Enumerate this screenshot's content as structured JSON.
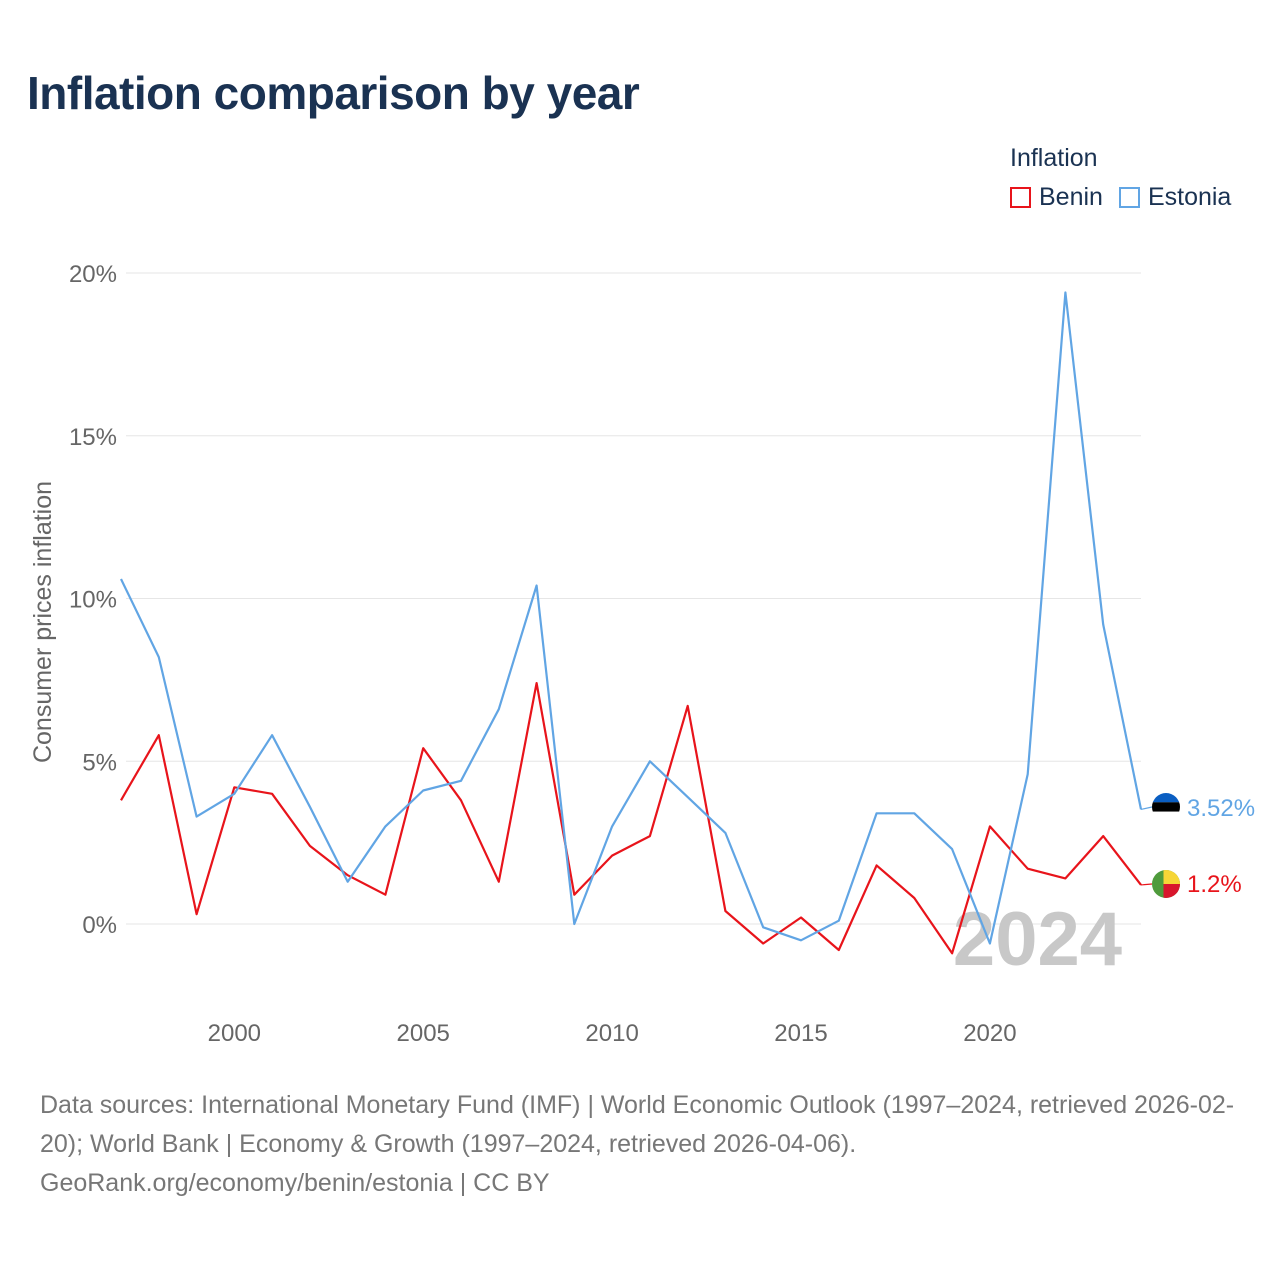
{
  "title": "Inflation comparison by year",
  "legend": {
    "title": "Inflation",
    "items": [
      {
        "label": "Benin",
        "color": "#e8141b"
      },
      {
        "label": "Estonia",
        "color": "#61a5e4"
      }
    ]
  },
  "chart_data": {
    "type": "line",
    "title": "Inflation comparison by year",
    "xlabel": "",
    "ylabel": "Consumer prices inflation",
    "x": [
      1997,
      1998,
      1999,
      2000,
      2001,
      2002,
      2003,
      2004,
      2005,
      2006,
      2007,
      2008,
      2009,
      2010,
      2011,
      2012,
      2013,
      2014,
      2015,
      2016,
      2017,
      2018,
      2019,
      2020,
      2021,
      2022,
      2023,
      2024
    ],
    "xlim": [
      1997,
      2024
    ],
    "ylim": [
      -2.2,
      20
    ],
    "xticks": [
      2000,
      2005,
      2010,
      2015,
      2020
    ],
    "yticks": [
      0,
      5,
      10,
      15,
      20
    ],
    "ytick_labels": [
      "0%",
      "5%",
      "10%",
      "15%",
      "20%"
    ],
    "grid": true,
    "legend_position": "top-right",
    "year_watermark": "2024",
    "series": [
      {
        "name": "Benin",
        "color": "#e8141b",
        "values": [
          3.8,
          5.8,
          0.3,
          4.2,
          4.0,
          2.4,
          1.5,
          0.9,
          5.4,
          3.8,
          1.3,
          7.4,
          0.9,
          2.1,
          2.7,
          6.7,
          0.4,
          -0.6,
          0.2,
          -0.8,
          1.8,
          0.8,
          -0.9,
          3.0,
          1.7,
          1.4,
          2.7,
          1.2
        ],
        "end_label": "1.2%",
        "flag": "benin-flag-icon"
      },
      {
        "name": "Estonia",
        "color": "#61a5e4",
        "values": [
          10.6,
          8.2,
          3.3,
          4.0,
          5.8,
          3.6,
          1.3,
          3.0,
          4.1,
          4.4,
          6.6,
          10.4,
          0.0,
          3.0,
          5.0,
          3.9,
          2.8,
          -0.1,
          -0.5,
          0.1,
          3.4,
          3.4,
          2.3,
          -0.6,
          4.6,
          19.4,
          9.2,
          3.52
        ],
        "end_label": "3.52%",
        "flag": "estonia-flag-icon"
      }
    ]
  },
  "footer": {
    "sources": "Data sources: International Monetary Fund (IMF) | World Economic Outlook (1997–2024, retrieved 2026-02-20); World Bank | Economy & Growth (1997–2024, retrieved 2026-04-06).",
    "credit": "GeoRank.org/economy/benin/estonia | CC BY"
  }
}
